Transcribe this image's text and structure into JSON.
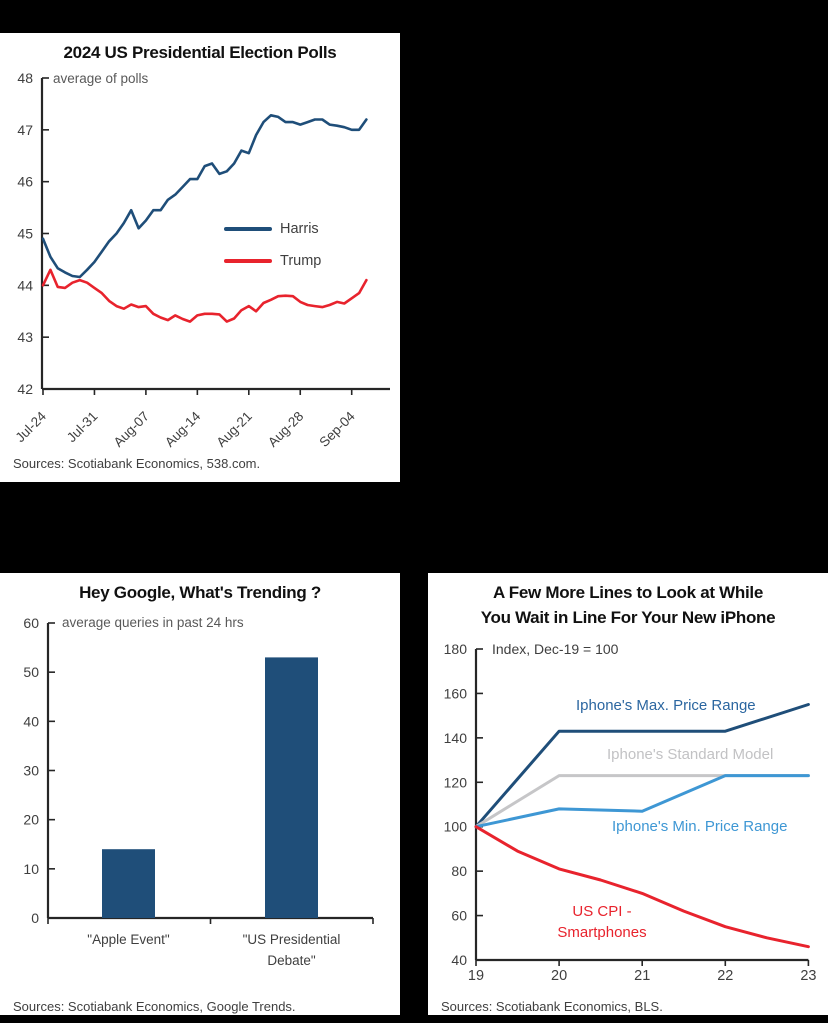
{
  "background": "#000000",
  "panels": [
    {
      "title": "2024 US Presidential Election Polls",
      "subtitle": "average of polls",
      "source": "Sources: Scotiabank Economics, 538.com.",
      "legend": [
        {
          "label": "Harris",
          "color": "#1F4E79"
        },
        {
          "label": "Trump",
          "color": "#E8232D"
        }
      ]
    },
    {
      "title": "Hey Google, What's Trending ?",
      "subtitle": "average queries in past 24 hrs",
      "source": "Sources: Scotiabank Economics, Google Trends."
    },
    {
      "title_line1": "A Few More Lines to Look at While",
      "title_line2": "You Wait in Line For Your New iPhone",
      "subtitle": "Index, Dec-19 = 100",
      "source": "Sources: Scotiabank Economics, BLS."
    }
  ],
  "chart_data": [
    {
      "type": "line",
      "title": "2024 US Presidential Election Polls",
      "subtitle": "average of polls",
      "xlabel": "",
      "ylabel": "",
      "ylim": [
        42,
        48
      ],
      "yticks": [
        42,
        43,
        44,
        45,
        46,
        47,
        48
      ],
      "grid": false,
      "legend_position": "center-right",
      "x_tick_labels": [
        "Jul-24",
        "Jul-31",
        "Aug-07",
        "Aug-14",
        "Aug-21",
        "Aug-28",
        "Sep-04"
      ],
      "x_tick_step_days": 7,
      "series": [
        {
          "name": "Harris",
          "color": "#1F4E79",
          "values": [
            44.9,
            44.55,
            44.33,
            44.25,
            44.18,
            44.16,
            44.3,
            44.45,
            44.65,
            44.85,
            45.0,
            45.2,
            45.45,
            45.1,
            45.25,
            45.45,
            45.45,
            45.65,
            45.75,
            45.9,
            46.05,
            46.05,
            46.3,
            46.35,
            46.15,
            46.2,
            46.35,
            46.6,
            46.55,
            46.9,
            47.15,
            47.28,
            47.25,
            47.15,
            47.15,
            47.1,
            47.15,
            47.2,
            47.2,
            47.1,
            47.08,
            47.05,
            47.0,
            47.0,
            47.2
          ]
        },
        {
          "name": "Trump",
          "color": "#E8232D",
          "values": [
            44.0,
            44.3,
            43.97,
            43.95,
            44.05,
            44.1,
            44.05,
            43.95,
            43.85,
            43.7,
            43.6,
            43.55,
            43.63,
            43.58,
            43.6,
            43.45,
            43.38,
            43.33,
            43.42,
            43.35,
            43.3,
            43.42,
            43.45,
            43.45,
            43.44,
            43.3,
            43.36,
            43.52,
            43.6,
            43.5,
            43.66,
            43.72,
            43.79,
            43.8,
            43.79,
            43.68,
            43.62,
            43.6,
            43.58,
            43.62,
            43.68,
            43.65,
            43.75,
            43.85,
            44.1
          ]
        }
      ],
      "source": "Sources: Scotiabank Economics, 538.com."
    },
    {
      "type": "bar",
      "title": "Hey Google, What's Trending ?",
      "subtitle": "average queries in past 24 hrs",
      "categories": [
        "\"Apple Event\"",
        "\"US Presidential Debate\""
      ],
      "values": [
        14,
        53
      ],
      "bar_color": "#1F4E79",
      "ylim": [
        0,
        60
      ],
      "yticks": [
        0,
        10,
        20,
        30,
        40,
        50,
        60
      ],
      "grid": false,
      "source": "Sources: Scotiabank Economics, Google Trends."
    },
    {
      "type": "line",
      "title": "A Few More Lines to Look at While You Wait in Line For Your New iPhone",
      "subtitle": "Index, Dec-19 = 100",
      "xlim": [
        19,
        23
      ],
      "xticks": [
        19,
        20,
        21,
        22,
        23
      ],
      "ylim": [
        40,
        180
      ],
      "yticks": [
        40,
        60,
        80,
        100,
        120,
        140,
        160,
        180
      ],
      "grid": false,
      "series": [
        {
          "name": "Iphone's Max. Price Range",
          "color": "#1F4E79",
          "label_color": "#2B66A0",
          "x": [
            19,
            20,
            21,
            22,
            23
          ],
          "values": [
            100,
            143,
            143,
            143,
            155
          ]
        },
        {
          "name": "Iphone's Standard Model",
          "color": "#C6C6C8",
          "label_color": "#C2C2C4",
          "x": [
            19,
            20,
            21,
            22,
            23
          ],
          "values": [
            100,
            123,
            123,
            123,
            123
          ]
        },
        {
          "name": "Iphone's Min. Price Range",
          "color": "#3E97D4",
          "label_color": "#3E97D4",
          "x": [
            19,
            20,
            21,
            22,
            23
          ],
          "values": [
            100,
            108,
            107,
            123,
            123
          ]
        },
        {
          "name": "US CPI - Smartphones",
          "color": "#E8232D",
          "label_color": "#E8232D",
          "label_lines": [
            "US CPI -",
            "Smartphones"
          ],
          "x": [
            19,
            19.5,
            20,
            20.5,
            21,
            21.5,
            22,
            22.5,
            23
          ],
          "values": [
            100,
            89,
            81,
            76,
            70,
            62,
            55,
            50,
            46
          ]
        }
      ],
      "source": "Sources: Scotiabank Economics, BLS."
    }
  ]
}
